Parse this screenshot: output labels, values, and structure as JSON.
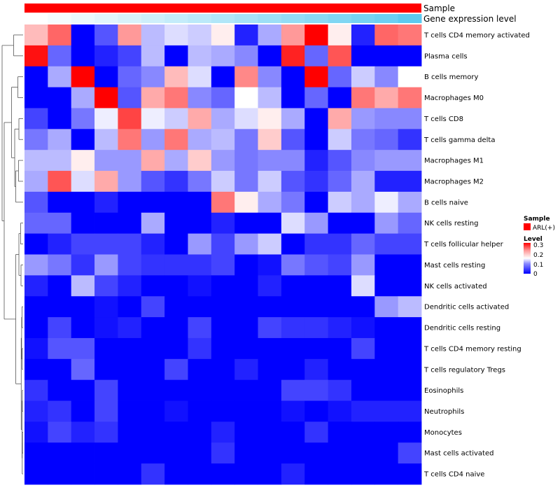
{
  "chart_data": {
    "type": "heatmap",
    "annotation_tracks": [
      {
        "name": "Sample",
        "values": [
          "ARL(+)"
        ],
        "color": "#ff0000"
      },
      {
        "name": "Gene expression level",
        "gradient": [
          "#ffffff",
          "#5ccaf0"
        ]
      }
    ],
    "legend": {
      "sample_title": "Sample",
      "sample_entries": [
        {
          "label": "ARL(+)",
          "color": "#ff0000"
        }
      ],
      "level_title": "Level",
      "level_ticks": [
        "0.3",
        "0.2",
        "0.1",
        "0"
      ],
      "level_range": [
        0,
        0.3
      ]
    },
    "colors": {
      "low": "#0000ff",
      "mid": "#ffffff",
      "high": "#ff0000"
    },
    "row_labels": [
      "T cells CD4 memory activated",
      "Plasma cells",
      "B cells memory",
      "Macrophages M0",
      "T cells CD8",
      "T cells gamma delta",
      "Macrophages M1",
      "Macrophages M2",
      "B cells naive",
      "NK cells resting",
      "T cells follicular helper",
      "Mast cells resting",
      "NK cells activated",
      "Dendritic cells activated",
      "Dendritic cells resting",
      "T cells CD4 memory resting",
      "T cells regulatory  Tregs",
      "Eosinophils",
      "Neutrophils",
      "Monocytes",
      "Mast cells activated",
      "T cells CD4 naive"
    ],
    "values": [
      [
        0.19,
        0.24,
        0.0,
        0.05,
        0.21,
        0.11,
        0.13,
        0.12,
        0.16,
        0.02,
        0.1,
        0.21,
        0.3,
        0.16,
        0.02,
        0.24,
        0.23
      ],
      [
        0.29,
        0.06,
        0.0,
        0.02,
        0.04,
        0.11,
        0.0,
        0.11,
        0.1,
        0.08,
        0.0,
        0.28,
        0.06,
        0.25,
        0.0,
        0.0,
        0.0
      ],
      [
        0.0,
        0.1,
        0.3,
        0.0,
        0.06,
        0.08,
        0.19,
        0.13,
        0.0,
        0.22,
        0.08,
        0.0,
        0.3,
        0.06,
        0.12,
        0.08,
        0.15
      ],
      [
        0.0,
        0.0,
        0.1,
        0.3,
        0.05,
        0.2,
        0.23,
        0.08,
        0.06,
        0.15,
        0.11,
        0.0,
        0.06,
        0.0,
        0.23,
        0.2,
        0.23
      ],
      [
        0.04,
        0.0,
        0.07,
        0.14,
        0.26,
        0.14,
        0.12,
        0.2,
        0.1,
        0.13,
        0.16,
        0.1,
        0.0,
        0.2,
        0.09,
        0.08,
        0.08
      ],
      [
        0.07,
        0.1,
        0.0,
        0.11,
        0.23,
        0.09,
        0.23,
        0.1,
        0.11,
        0.07,
        0.18,
        0.05,
        0.0,
        0.12,
        0.07,
        0.06,
        0.03
      ],
      [
        0.11,
        0.11,
        0.16,
        0.09,
        0.09,
        0.2,
        0.1,
        0.18,
        0.09,
        0.07,
        0.08,
        0.08,
        0.02,
        0.05,
        0.08,
        0.09,
        0.09
      ],
      [
        0.1,
        0.25,
        0.13,
        0.2,
        0.09,
        0.05,
        0.03,
        0.07,
        0.12,
        0.07,
        0.12,
        0.05,
        0.03,
        0.06,
        0.1,
        0.02,
        0.02
      ],
      [
        0.05,
        0.0,
        0.0,
        0.02,
        0.0,
        0.0,
        0.0,
        0.0,
        0.23,
        0.16,
        0.1,
        0.07,
        0.0,
        0.12,
        0.1,
        0.14,
        0.1
      ],
      [
        0.06,
        0.06,
        0.0,
        0.0,
        0.0,
        0.1,
        0.0,
        0.0,
        0.02,
        0.0,
        0.0,
        0.13,
        0.09,
        0.0,
        0.0,
        0.09,
        0.06
      ],
      [
        0.0,
        0.02,
        0.04,
        0.04,
        0.04,
        0.02,
        0.0,
        0.09,
        0.04,
        0.09,
        0.12,
        0.0,
        0.03,
        0.03,
        0.06,
        0.04,
        0.04
      ],
      [
        0.09,
        0.07,
        0.03,
        0.09,
        0.04,
        0.03,
        0.03,
        0.03,
        0.04,
        0.0,
        0.01,
        0.07,
        0.05,
        0.04,
        0.09,
        0.0,
        0.0
      ],
      [
        0.02,
        0.0,
        0.11,
        0.04,
        0.02,
        0.0,
        0.0,
        0.01,
        0.0,
        0.0,
        0.02,
        0.0,
        0.0,
        0.0,
        0.13,
        0.0,
        0.0
      ],
      [
        0.0,
        0.0,
        0.0,
        0.01,
        0.0,
        0.04,
        0.0,
        0.0,
        0.0,
        0.0,
        0.0,
        0.0,
        0.0,
        0.0,
        0.0,
        0.09,
        0.11
      ],
      [
        0.0,
        0.04,
        0.0,
        0.01,
        0.02,
        0.0,
        0.0,
        0.04,
        0.0,
        0.0,
        0.04,
        0.03,
        0.03,
        0.02,
        0.01,
        0.0,
        0.0
      ],
      [
        0.01,
        0.05,
        0.05,
        0.0,
        0.0,
        0.0,
        0.0,
        0.03,
        0.0,
        0.0,
        0.0,
        0.0,
        0.0,
        0.0,
        0.04,
        0.0,
        0.0
      ],
      [
        0.0,
        0.0,
        0.06,
        0.0,
        0.0,
        0.0,
        0.04,
        0.0,
        0.0,
        0.02,
        0.0,
        0.0,
        0.02,
        0.0,
        0.0,
        0.0,
        0.0
      ],
      [
        0.03,
        0.0,
        0.0,
        0.04,
        0.0,
        0.0,
        0.0,
        0.0,
        0.0,
        0.0,
        0.0,
        0.04,
        0.04,
        0.03,
        0.0,
        0.0,
        0.0
      ],
      [
        0.02,
        0.03,
        0.0,
        0.04,
        0.0,
        0.0,
        0.01,
        0.0,
        0.0,
        0.0,
        0.0,
        0.01,
        0.0,
        0.01,
        0.02,
        0.02,
        0.02
      ],
      [
        0.01,
        0.04,
        0.02,
        0.03,
        0.0,
        0.0,
        0.0,
        0.0,
        0.02,
        0.0,
        0.0,
        0.0,
        0.03,
        0.0,
        0.0,
        0.0,
        0.0
      ],
      [
        0.0,
        0.0,
        0.0,
        0.0,
        0.0,
        0.0,
        0.0,
        0.0,
        0.03,
        0.0,
        0.0,
        0.0,
        0.0,
        0.0,
        0.0,
        0.0,
        0.04
      ],
      [
        0.0,
        0.0,
        0.0,
        0.0,
        0.0,
        0.03,
        0.0,
        0.0,
        0.0,
        0.0,
        0.0,
        0.02,
        0.0,
        0.0,
        0.0,
        0.0,
        0.0
      ]
    ],
    "gene_expression_level": [
      0.0,
      0.06,
      0.12,
      0.18,
      0.24,
      0.3,
      0.36,
      0.42,
      0.48,
      0.54,
      0.6,
      0.66,
      0.72,
      0.78,
      0.84,
      0.9,
      1.0
    ],
    "dendrogram": [
      {
        "a": 0,
        "b": 1,
        "h": 0.45
      },
      {
        "a": 2,
        "b": 3,
        "h": 0.25
      },
      {
        "a": 4,
        "b": 5,
        "h": 0.2
      },
      {
        "a": 6,
        "b": 7,
        "h": 0.22
      },
      {
        "a": "n3",
        "b": 8,
        "h": 0.35
      },
      {
        "a": "n2",
        "b": "n4",
        "h": 0.4
      },
      {
        "a": "n1",
        "b": "n5",
        "h": 0.55
      },
      {
        "a": 9,
        "b": 10,
        "h": 0.12
      },
      {
        "a": 11,
        "b": 12,
        "h": 0.1
      },
      {
        "a": "n7",
        "b": "n8",
        "h": 0.2
      },
      {
        "a": 13,
        "b": 14,
        "h": 0.05
      },
      {
        "a": 15,
        "b": 16,
        "h": 0.04
      },
      {
        "a": "n10",
        "b": "n11",
        "h": 0.07
      },
      {
        "a": 17,
        "b": 18,
        "h": 0.035
      },
      {
        "a": 19,
        "b": 20,
        "h": 0.03
      },
      {
        "a": "n14",
        "b": 21,
        "h": 0.04
      },
      {
        "a": "n13",
        "b": "n15",
        "h": 0.05
      },
      {
        "a": "n12",
        "b": "n16",
        "h": 0.09
      },
      {
        "a": "n9",
        "b": "n17",
        "h": 0.35
      },
      {
        "a": "n6",
        "b": "n18",
        "h": 0.9
      },
      {
        "a": "n0",
        "b": "n19",
        "h": 1.0
      }
    ]
  }
}
